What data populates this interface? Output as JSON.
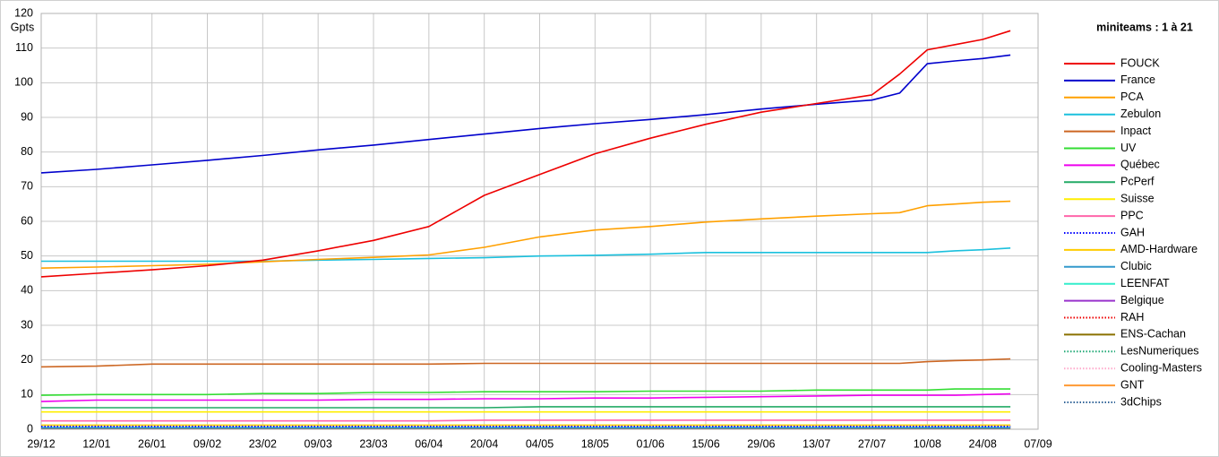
{
  "chart_data": {
    "type": "line",
    "title": "miniteams : 1 à 21",
    "y_label": "Gpts",
    "x": [
      0,
      14,
      28,
      42,
      56,
      70,
      84,
      98,
      112,
      126,
      140,
      154,
      168,
      182,
      196,
      210,
      217,
      224,
      231,
      238,
      245
    ],
    "xlim": [
      0,
      252
    ],
    "xticks": [
      {
        "value": 0,
        "label": "29/12"
      },
      {
        "value": 14,
        "label": "12/01"
      },
      {
        "value": 28,
        "label": "26/01"
      },
      {
        "value": 42,
        "label": "09/02"
      },
      {
        "value": 56,
        "label": "23/02"
      },
      {
        "value": 70,
        "label": "09/03"
      },
      {
        "value": 84,
        "label": "23/03"
      },
      {
        "value": 98,
        "label": "06/04"
      },
      {
        "value": 112,
        "label": "20/04"
      },
      {
        "value": 126,
        "label": "04/05"
      },
      {
        "value": 140,
        "label": "18/05"
      },
      {
        "value": 154,
        "label": "01/06"
      },
      {
        "value": 168,
        "label": "15/06"
      },
      {
        "value": 182,
        "label": "29/06"
      },
      {
        "value": 196,
        "label": "13/07"
      },
      {
        "value": 210,
        "label": "27/07"
      },
      {
        "value": 224,
        "label": "10/08"
      },
      {
        "value": 238,
        "label": "24/08"
      },
      {
        "value": 252,
        "label": "07/09"
      }
    ],
    "ylim": [
      0,
      120
    ],
    "yticks": [
      0,
      10,
      20,
      30,
      40,
      50,
      60,
      70,
      80,
      90,
      100,
      110,
      120
    ],
    "grid": true,
    "legend": "right",
    "series": [
      {
        "name": "FOUCK",
        "color": "#ee0000",
        "dash": "solid",
        "values": [
          44,
          45,
          46,
          47.2,
          48.8,
          51.5,
          54.5,
          58.5,
          67.5,
          73.5,
          79.5,
          84,
          88,
          91.5,
          94,
          96.5,
          102.5,
          109.5,
          111,
          112.5,
          115
        ]
      },
      {
        "name": "France",
        "color": "#0000cc",
        "dash": "solid",
        "values": [
          74,
          75,
          76.3,
          77.6,
          79,
          80.6,
          82,
          83.6,
          85.2,
          86.8,
          88.2,
          89.4,
          90.8,
          92.4,
          93.8,
          95,
          97,
          105.5,
          106.3,
          107,
          108
        ]
      },
      {
        "name": "PCA",
        "color": "#ffa000",
        "dash": "solid",
        "values": [
          46.5,
          46.8,
          47.2,
          47.6,
          48.3,
          49,
          49.6,
          50.3,
          52.5,
          55.5,
          57.5,
          58.5,
          59.8,
          60.7,
          61.5,
          62.2,
          62.5,
          64.5,
          65,
          65.5,
          65.8
        ]
      },
      {
        "name": "Zebulon",
        "color": "#1bc0dd",
        "dash": "solid",
        "values": [
          48.5,
          48.5,
          48.5,
          48.5,
          48.5,
          48.8,
          49,
          49.3,
          49.5,
          50,
          50.2,
          50.5,
          51,
          51,
          51,
          51,
          51,
          51,
          51.5,
          51.8,
          52.3
        ]
      },
      {
        "name": "Inpact",
        "color": "#cc6622",
        "dash": "solid",
        "values": [
          18,
          18.2,
          18.8,
          18.8,
          18.8,
          18.8,
          18.8,
          18.8,
          19,
          19,
          19,
          19,
          19,
          19,
          19,
          19,
          19,
          19.5,
          19.8,
          20,
          20.3
        ]
      },
      {
        "name": "UV",
        "color": "#33dd33",
        "dash": "solid",
        "values": [
          9.8,
          10,
          10,
          10,
          10.3,
          10.3,
          10.6,
          10.6,
          10.8,
          10.8,
          10.8,
          11,
          11,
          11,
          11.3,
          11.3,
          11.3,
          11.3,
          11.6,
          11.6,
          11.6
        ]
      },
      {
        "name": "Québec",
        "color": "#ee00ee",
        "dash": "solid",
        "values": [
          8,
          8.4,
          8.4,
          8.4,
          8.4,
          8.4,
          8.6,
          8.6,
          8.8,
          8.8,
          9,
          9,
          9.2,
          9.4,
          9.6,
          9.8,
          9.8,
          9.8,
          9.8,
          10,
          10.2
        ]
      },
      {
        "name": "PcPerf",
        "color": "#22aa66",
        "dash": "solid",
        "values": [
          6.2,
          6.2,
          6.2,
          6.2,
          6.2,
          6.2,
          6.2,
          6.2,
          6.2,
          6.5,
          6.5,
          6.5,
          6.5,
          6.5,
          6.5,
          6.5,
          6.5,
          6.5,
          6.5,
          6.5,
          6.5
        ]
      },
      {
        "name": "Suisse",
        "color": "#ffee00",
        "dash": "solid",
        "values": [
          5,
          5,
          5,
          5,
          5,
          5,
          5,
          5,
          5,
          5,
          5,
          5,
          5,
          5,
          5,
          5,
          5,
          5,
          5,
          5,
          5
        ]
      },
      {
        "name": "PPC",
        "color": "#ff66aa",
        "dash": "solid",
        "values": [
          2.4,
          2.4,
          2.4,
          2.4,
          2.4,
          2.4,
          2.4,
          2.4,
          2.6,
          2.6,
          2.6,
          2.6,
          2.6,
          2.6,
          2.6,
          2.6,
          2.6,
          2.6,
          2.6,
          2.6,
          2.6
        ]
      },
      {
        "name": "GAH",
        "color": "#0000ff",
        "dash": "dotted",
        "values": [
          0.8,
          0.8,
          0.8,
          0.8,
          0.8,
          0.8,
          0.8,
          0.8,
          0.8,
          0.8,
          0.8,
          0.8,
          0.8,
          0.8,
          0.8,
          0.8,
          0.8,
          0.8,
          0.8,
          0.8,
          0.8
        ]
      },
      {
        "name": "AMD-Hardware",
        "color": "#ffcc00",
        "dash": "solid",
        "values": [
          1.2,
          1.2,
          1.2,
          1.2,
          1.2,
          1.2,
          1.2,
          1.2,
          1.2,
          1.2,
          1.2,
          1.2,
          1.2,
          1.2,
          1.2,
          1.2,
          1.2,
          1.2,
          1.2,
          1.2,
          1.2
        ]
      },
      {
        "name": "Clubic",
        "color": "#3399cc",
        "dash": "solid",
        "values": [
          0.5,
          0.5,
          0.5,
          0.5,
          0.5,
          0.5,
          0.5,
          0.5,
          0.5,
          0.5,
          0.5,
          0.5,
          0.5,
          0.5,
          0.5,
          0.5,
          0.5,
          0.5,
          0.5,
          0.5,
          0.5
        ]
      },
      {
        "name": "LEENFAT",
        "color": "#33eecc",
        "dash": "solid",
        "values": [
          0.4,
          0.4,
          0.4,
          0.4,
          0.4,
          0.4,
          0.4,
          0.4,
          0.4,
          0.4,
          0.4,
          0.4,
          0.4,
          0.4,
          0.4,
          0.4,
          0.4,
          0.4,
          0.4,
          0.4,
          0.4
        ]
      },
      {
        "name": "Belgique",
        "color": "#9933cc",
        "dash": "solid",
        "values": [
          0.3,
          0.3,
          0.3,
          0.3,
          0.3,
          0.3,
          0.3,
          0.3,
          0.3,
          0.3,
          0.3,
          0.3,
          0.3,
          0.3,
          0.3,
          0.3,
          0.3,
          0.3,
          0.3,
          0.3,
          0.3
        ]
      },
      {
        "name": "RAH",
        "color": "#ee0000",
        "dash": "dotted",
        "values": [
          0.6,
          0.6,
          0.6,
          0.6,
          0.6,
          0.6,
          0.6,
          0.6,
          0.6,
          0.6,
          0.6,
          0.6,
          0.6,
          0.6,
          0.6,
          0.6,
          0.6,
          0.6,
          0.6,
          0.6,
          0.6
        ]
      },
      {
        "name": "ENS-Cachan",
        "color": "#8a7000",
        "dash": "solid",
        "values": [
          0.2,
          0.2,
          0.2,
          0.2,
          0.2,
          0.2,
          0.2,
          0.2,
          0.2,
          0.2,
          0.2,
          0.2,
          0.2,
          0.2,
          0.2,
          0.2,
          0.2,
          0.2,
          0.2,
          0.2,
          0.2
        ]
      },
      {
        "name": "LesNumeriques",
        "color": "#22aa77",
        "dash": "dotted",
        "values": [
          0.7,
          0.7,
          0.7,
          0.7,
          0.7,
          0.7,
          0.7,
          0.7,
          0.7,
          0.7,
          0.7,
          0.7,
          0.7,
          0.7,
          0.7,
          0.7,
          0.7,
          0.7,
          0.7,
          0.7,
          0.7
        ]
      },
      {
        "name": "Cooling-Masters",
        "color": "#ffaacc",
        "dash": "dotted",
        "values": [
          0.9,
          0.9,
          0.9,
          0.9,
          0.9,
          0.9,
          0.9,
          0.9,
          0.9,
          0.9,
          0.9,
          0.9,
          0.9,
          0.9,
          0.9,
          0.9,
          0.9,
          0.9,
          0.9,
          0.9,
          0.9
        ]
      },
      {
        "name": "GNT",
        "color": "#ff9933",
        "dash": "solid",
        "values": [
          0.3,
          0.3,
          0.3,
          0.3,
          0.3,
          0.3,
          0.3,
          0.3,
          0.3,
          0.3,
          0.3,
          0.3,
          0.3,
          0.3,
          0.3,
          0.3,
          0.3,
          0.3,
          0.3,
          0.3,
          0.3
        ]
      },
      {
        "name": "3dChips",
        "color": "#336699",
        "dash": "dotted",
        "values": [
          1,
          1,
          1,
          1,
          1,
          1,
          1,
          1,
          1,
          1,
          1,
          1,
          1,
          1,
          1,
          1,
          1,
          1,
          1,
          1,
          1
        ]
      }
    ]
  }
}
